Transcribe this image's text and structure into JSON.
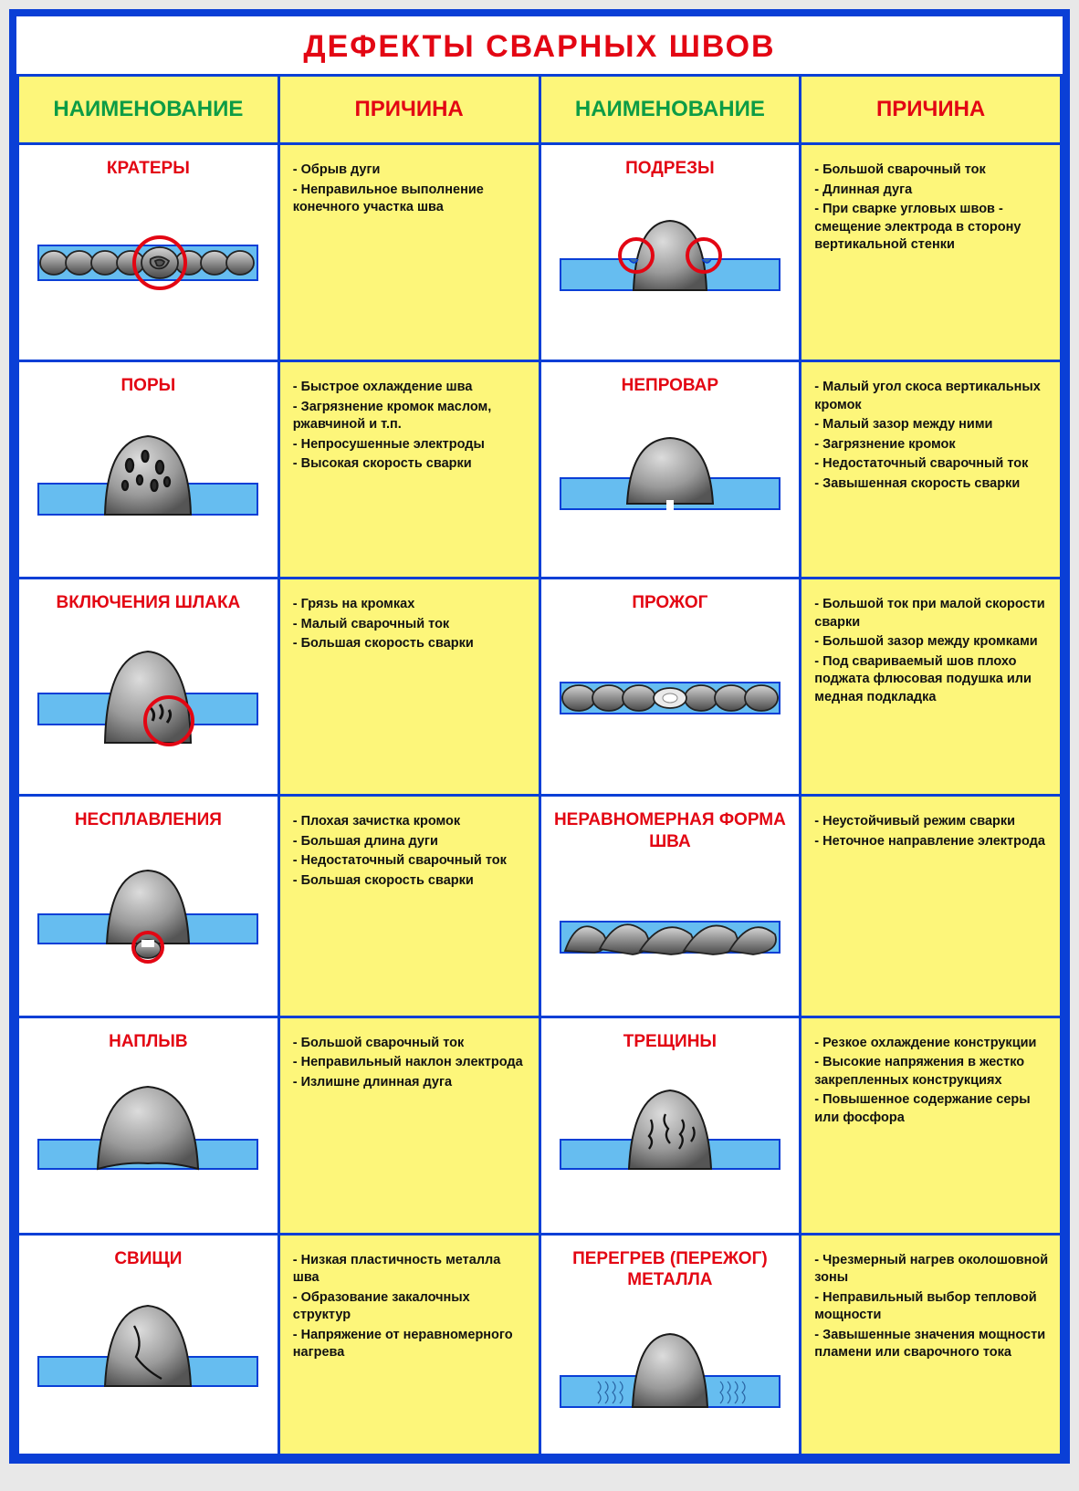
{
  "title": "ДЕФЕКТЫ СВАРНЫХ ШВОВ",
  "colors": {
    "border": "#0a3fd6",
    "header_bg": "#fdf67a",
    "name_color": "#0d9c45",
    "cause_color": "#e30613",
    "cell_cause_bg": "#fdf67a",
    "cell_name_bg": "#ffffff",
    "title_color": "#e30613",
    "metal": "#66bdf0",
    "weld_light": "#cfcfcf",
    "weld_dark": "#6e6e6e",
    "marker": "#e30613"
  },
  "headers": {
    "name": "НАИМЕНОВАНИЕ",
    "cause": "ПРИЧИНА"
  },
  "rows": [
    {
      "left": {
        "name": "КРАТЕРЫ",
        "diagram": "kratery",
        "causes": [
          "- Обрыв дуги",
          "- Неправильное выполнение конечного участка шва"
        ]
      },
      "right": {
        "name": "ПОДРЕЗЫ",
        "diagram": "podrezy",
        "causes": [
          "- Большой сварочный ток",
          "- Длинная дуга",
          "- При сварке угловых швов - смещение электрода в сторону вертикальной стенки"
        ]
      }
    },
    {
      "left": {
        "name": "ПОРЫ",
        "diagram": "pory",
        "causes": [
          "- Быстрое охлаждение шва",
          "- Загрязнение кромок маслом, ржавчиной и т.п.",
          "- Непросушенные электроды",
          "- Высокая скорость сварки"
        ]
      },
      "right": {
        "name": "НЕПРОВАР",
        "diagram": "neprovar",
        "causes": [
          "- Малый угол скоса вертикальных кромок",
          "- Малый зазор между ними",
          "- Загрязнение кромок",
          "- Недостаточный сварочный ток",
          "- Завышенная скорость сварки"
        ]
      }
    },
    {
      "left": {
        "name": "ВКЛЮЧЕНИЯ ШЛАКА",
        "diagram": "shlak",
        "causes": [
          "- Грязь на кромках",
          "- Малый сварочный ток",
          "- Большая скорость сварки"
        ]
      },
      "right": {
        "name": "ПРОЖОГ",
        "diagram": "prozhog",
        "causes": [
          "- Большой ток при малой скорости сварки",
          "- Большой зазор между кромками",
          "- Под свариваемый шов плохо поджата флюсовая подушка или медная подкладка"
        ]
      }
    },
    {
      "left": {
        "name": "НЕСПЛАВЛЕНИЯ",
        "diagram": "nesplav",
        "causes": [
          "- Плохая зачистка кромок",
          "- Большая длина дуги",
          "- Недостаточный сварочный ток",
          "- Большая скорость сварки"
        ]
      },
      "right": {
        "name": "НЕРАВНОМЕРНАЯ ФОРМА ШВА",
        "diagram": "neravn",
        "causes": [
          "- Неустойчивый режим сварки",
          "- Неточное направление электрода"
        ]
      }
    },
    {
      "left": {
        "name": "НАПЛЫВ",
        "diagram": "naplyv",
        "causes": [
          "- Большой сварочный ток",
          "- Неправильный наклон электрода",
          "- Излишне длинная дуга"
        ]
      },
      "right": {
        "name": "ТРЕЩИНЫ",
        "diagram": "treshiny",
        "causes": [
          "- Резкое охлаждение конструкции",
          "- Высокие напряжения в жестко закрепленных конструкциях",
          "- Повышенное содержание серы или фосфора"
        ]
      }
    },
    {
      "left": {
        "name": "СВИЩИ",
        "diagram": "svishi",
        "causes": [
          "- Низкая пластичность металла шва",
          "- Образование закалочных структур",
          "- Напряжение от неравномерного нагрева"
        ]
      },
      "right": {
        "name": "ПЕРЕГРЕВ (ПЕРЕЖОГ) МЕТАЛЛА",
        "diagram": "peregrev",
        "causes": [
          "- Чрезмерный нагрев околошовной зоны",
          "- Неправильный выбор тепловой мощности",
          "- Завышенные значения мощности пламени или сварочного тока"
        ]
      }
    }
  ]
}
